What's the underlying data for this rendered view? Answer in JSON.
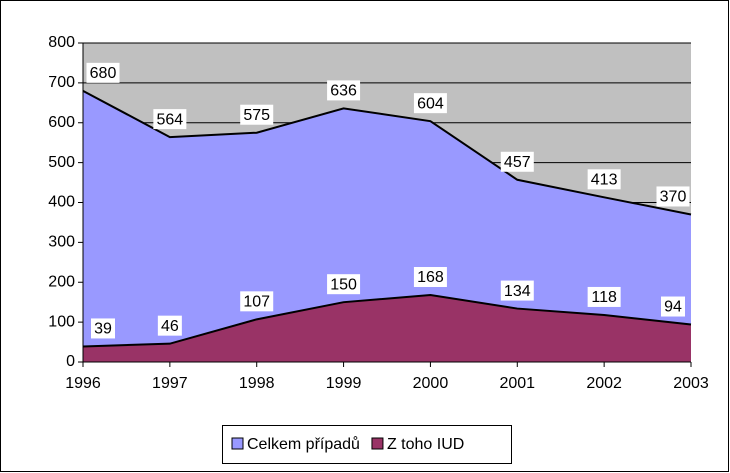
{
  "chart_data": {
    "type": "area",
    "x": [
      1996,
      1997,
      1998,
      1999,
      2000,
      2001,
      2002,
      2003
    ],
    "series": [
      {
        "name": "Celkem případů",
        "color": "#9999ff",
        "values": [
          680,
          564,
          575,
          636,
          604,
          457,
          413,
          370
        ]
      },
      {
        "name": "Z toho IUD",
        "color": "#993366",
        "values": [
          39,
          46,
          107,
          150,
          168,
          134,
          118,
          94
        ]
      }
    ],
    "xlim": [
      1996,
      2003
    ],
    "xticks": [
      1996,
      1997,
      1998,
      1999,
      2000,
      2001,
      2002,
      2003
    ],
    "ylim": [
      0,
      800
    ],
    "yticks": [
      0,
      100,
      200,
      300,
      400,
      500,
      600,
      700,
      800
    ],
    "grid": true,
    "plot_background": "#c0c0c0",
    "legend": "bottom"
  }
}
